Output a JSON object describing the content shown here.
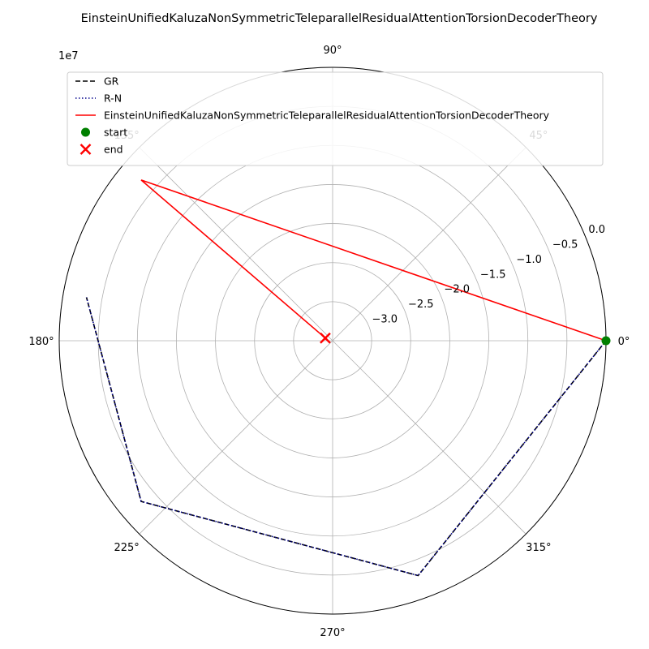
{
  "chart_data": {
    "type": "polar-line",
    "title": "EinsteinUnifiedKaluzaNonSymmetricTeleparallelResidualAttentionTorsionDecoderTheory",
    "radial_multiplier_label": "1e7",
    "angle_tick_labels": [
      "0°",
      "45°",
      "90°",
      "135°",
      "180°",
      "225°",
      "270°",
      "315°"
    ],
    "angle_ticks_deg": [
      0,
      45,
      90,
      135,
      180,
      225,
      270,
      315
    ],
    "radial_tick_labels": [
      "−3.0",
      "−2.5",
      "−2.0",
      "−1.5",
      "−1.0",
      "−0.5",
      "0.0"
    ],
    "radial_tick_values": [
      -3.0,
      -2.5,
      -2.0,
      -1.5,
      -1.0,
      -0.5,
      0.0
    ],
    "r_range": [
      -3.5,
      0.0
    ],
    "radial_label_angle_deg": 22.5,
    "grid": true,
    "legend_position": "upper-left",
    "series": [
      {
        "name": "GR",
        "color": "#000000",
        "style": "dashed",
        "points": [
          {
            "theta_deg": 0,
            "r": 0.0
          },
          {
            "theta_deg": 290,
            "r": -0.3
          },
          {
            "theta_deg": 220,
            "r": -0.3
          },
          {
            "theta_deg": 170,
            "r": -0.3
          }
        ]
      },
      {
        "name": "R-N",
        "color": "#00008b",
        "style": "dotted",
        "points": [
          {
            "theta_deg": 0,
            "r": 0.0
          },
          {
            "theta_deg": 290,
            "r": -0.3
          },
          {
            "theta_deg": 220,
            "r": -0.3
          },
          {
            "theta_deg": 170,
            "r": -0.3
          }
        ]
      },
      {
        "name": "EinsteinUnifiedKaluzaNonSymmetricTeleparallelResidualAttentionTorsionDecoderTheory",
        "color": "#ff0000",
        "style": "solid",
        "points": [
          {
            "theta_deg": 0,
            "r": 0.0
          },
          {
            "theta_deg": 140,
            "r": -0.3
          },
          {
            "theta_deg": 160,
            "r": -3.4
          }
        ]
      }
    ],
    "markers": [
      {
        "name": "start",
        "theta_deg": 0,
        "r": 0.0,
        "color": "#008000",
        "shape": "circle"
      },
      {
        "name": "end",
        "theta_deg": 160,
        "r": -3.4,
        "color": "#ff0000",
        "shape": "x"
      }
    ]
  }
}
